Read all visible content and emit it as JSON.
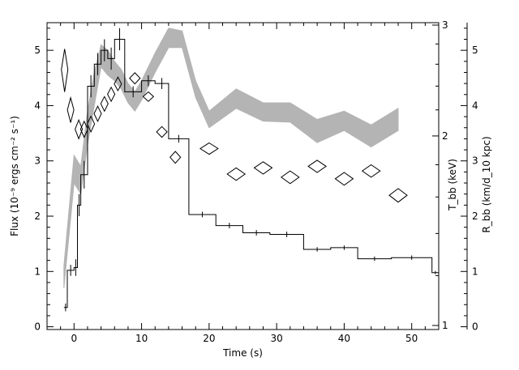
{
  "chart_data": {
    "type": "line",
    "xlabel": "Time (s)",
    "ylabel_left": "Flux (10⁻⁹ ergs cm⁻² s⁻¹)",
    "ylabel_right_1": "T_bb (keV)",
    "ylabel_right_2": "R_bb (km/d_10 kpc)",
    "xlim": [
      -4,
      54
    ],
    "ylim_left": [
      -0.05,
      5.5
    ],
    "x_ticks": [
      0,
      10,
      20,
      30,
      40,
      50
    ],
    "y_ticks_left": [
      0,
      1,
      2,
      3,
      4,
      5
    ],
    "y_ticks_T": [
      1,
      2,
      3
    ],
    "y_ticks_R": [
      0,
      1,
      2,
      3,
      4,
      5
    ],
    "series": [
      {
        "kind": "flux_histogram",
        "x_edges": [
          -1.5,
          -1,
          0,
          0.5,
          1,
          2,
          3,
          4,
          5,
          6,
          7.5,
          10,
          12,
          14,
          17,
          21,
          25,
          29,
          34,
          38,
          42,
          47,
          53,
          54
        ],
        "values": [
          0.35,
          1.02,
          1.07,
          2.2,
          2.75,
          4.35,
          4.75,
          5.0,
          4.85,
          5.2,
          4.25,
          4.45,
          4.4,
          3.4,
          2.03,
          1.83,
          1.7,
          1.67,
          1.4,
          1.43,
          1.23,
          1.25,
          0.98
        ],
        "errors": [
          0.07,
          0.1,
          0.15,
          0.2,
          0.25,
          0.2,
          0.2,
          0.2,
          0.2,
          0.2,
          0.1,
          0.1,
          0.1,
          0.07,
          0.05,
          0.05,
          0.05,
          0.05,
          0.04,
          0.04,
          0.04,
          0.04,
          0.03
        ]
      },
      {
        "kind": "radius_band",
        "x": [
          -1.5,
          0,
          1,
          2,
          3,
          4,
          5,
          6,
          7,
          8,
          9,
          10,
          12,
          14,
          16,
          18,
          20,
          24,
          28,
          32,
          36,
          40,
          44,
          48
        ],
        "low": [
          0.7,
          2.6,
          2.4,
          3.3,
          4.0,
          4.7,
          4.55,
          4.45,
          4.3,
          4.05,
          3.9,
          4.1,
          4.6,
          5.05,
          5.05,
          4.15,
          3.6,
          3.95,
          3.72,
          3.7,
          3.33,
          3.55,
          3.25,
          3.55
        ],
        "high": [
          1.1,
          3.1,
          2.9,
          3.9,
          4.6,
          5.1,
          5.0,
          4.8,
          4.65,
          4.4,
          4.25,
          4.45,
          4.95,
          5.4,
          5.35,
          4.45,
          3.9,
          4.3,
          4.05,
          4.05,
          3.75,
          3.9,
          3.65,
          3.95
        ]
      },
      {
        "kind": "temperature_diamonds",
        "x": [
          -1.4,
          -0.5,
          0.7,
          1.5,
          2.5,
          3.5,
          4.5,
          5.5,
          6.5,
          9,
          11,
          13,
          15,
          20,
          24,
          28,
          32,
          36,
          40,
          44,
          48
        ],
        "y": [
          2.55,
          2.2,
          2.05,
          2.05,
          2.09,
          2.17,
          2.25,
          2.33,
          2.42,
          2.47,
          2.31,
          2.03,
          1.85,
          1.91,
          1.74,
          1.78,
          1.72,
          1.79,
          1.71,
          1.76,
          1.61
        ],
        "yerr": [
          0.2,
          0.1,
          0.07,
          0.06,
          0.06,
          0.06,
          0.06,
          0.06,
          0.06,
          0.05,
          0.04,
          0.04,
          0.04,
          0.04,
          0.04,
          0.04,
          0.04,
          0.04,
          0.04,
          0.04,
          0.04
        ]
      }
    ]
  }
}
